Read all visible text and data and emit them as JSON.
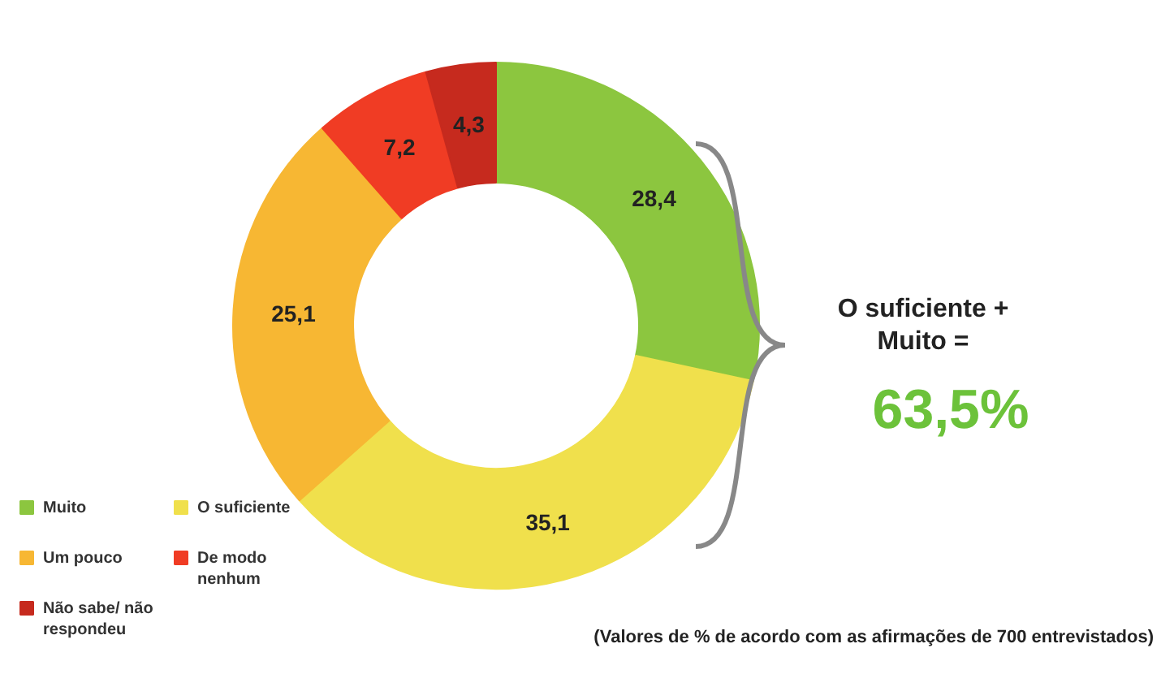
{
  "chart_data": {
    "type": "donut",
    "categories": [
      "Muito",
      "O suficiente",
      "Um pouco",
      "De modo nenhum",
      "Não sabe/ não respondeu"
    ],
    "values": [
      28.4,
      35.1,
      25.1,
      7.2,
      4.3
    ],
    "colors": [
      "#8cc63f",
      "#f0e04c",
      "#f7b733",
      "#f03c24",
      "#c62a1e"
    ],
    "value_labels": [
      "28,4",
      "35,1",
      "25,1",
      "7,2",
      "4,3"
    ],
    "legend": "bottom left",
    "annotations": [
      "O suficiente + Muito =",
      "63,5%",
      "(Valores de % de acordo com as afirmações de 700 entrevistados)"
    ]
  }
}
